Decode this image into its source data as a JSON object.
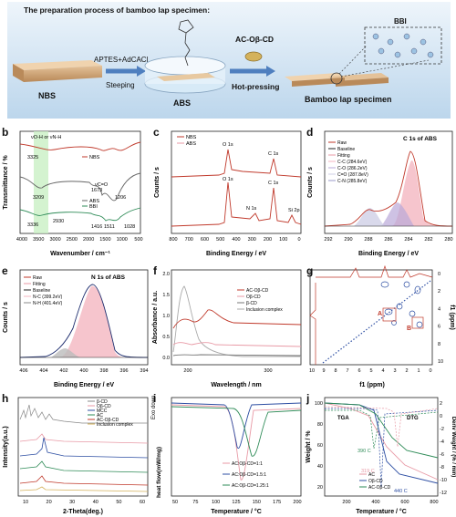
{
  "a": {
    "label": "a",
    "title": "The preparation process of bamboo lap specimen:",
    "step1": "APTES+AdCACl",
    "step1b": "Steeping",
    "step2": "AC-Oβ-CD",
    "step2b": "Hot-pressing",
    "nbs": "NBS",
    "abs": "ABS",
    "bbi": "BBI",
    "result": "Bamboo lap specimen"
  },
  "b": {
    "label": "b",
    "xlabel": "Wavenumber / cm⁻¹",
    "ylabel": "Transmittance / %",
    "xticks": [
      "4000",
      "3500",
      "3000",
      "2500",
      "2000",
      "1500",
      "1000",
      "500"
    ],
    "legend": [
      "NBS",
      "ABS",
      "BBI"
    ],
    "ann": {
      "top": "νO-H or νN-H",
      "a3325": "3325",
      "a3209": "3209",
      "a3336": "3336",
      "a2930": "2930",
      "a1673": "1673",
      "aC=O": "νC=O",
      "a1206": "1206",
      "a1416": "1416",
      "a1511": "1511",
      "a1028": "1028"
    }
  },
  "c": {
    "label": "c",
    "xlabel": "Binding Energy / eV",
    "ylabel": "Counts / s",
    "xticks": [
      "800",
      "700",
      "600",
      "500",
      "400",
      "300",
      "200",
      "100",
      "0"
    ],
    "legend": [
      "NBS",
      "ABS"
    ],
    "ann": {
      "o1": "O 1s",
      "c1": "C 1s",
      "o1b": "O 1s",
      "c1b": "C 1s",
      "n1": "N 1s",
      "si": "Si 2p"
    }
  },
  "d": {
    "label": "d",
    "title": "C 1s of ABS",
    "xlabel": "Binding Energy / eV",
    "ylabel": "Counts / s",
    "xticks": [
      "292",
      "290",
      "288",
      "286",
      "284",
      "282",
      "280"
    ],
    "legend": [
      "Raw",
      "Baseline",
      "Fitting",
      "C-C (284.6eV)",
      "C-O (286.2eV)",
      "C=O (287.8eV)",
      "C-N (285.8eV)"
    ]
  },
  "e": {
    "label": "e",
    "title": "N 1s of ABS",
    "xlabel": "Binding Energy / eV",
    "ylabel": "Counts / s",
    "xticks": [
      "406",
      "404",
      "402",
      "400",
      "398",
      "396",
      "394"
    ],
    "legend": [
      "Raw",
      "Fitting",
      "Baseline",
      "N-C (399.2eV)",
      "N-H (401.4eV)"
    ]
  },
  "f": {
    "label": "f",
    "xlabel": "Wavelength / nm",
    "ylabel": "Absorbance / a.u.",
    "xticks": [
      "200",
      "300"
    ],
    "yticks": [
      "0.0",
      "0.5",
      "1.0",
      "1.5",
      "2.0"
    ],
    "legend": [
      "AC-Oβ-CD",
      "Oβ-CD",
      "β-CD",
      "Inclusion complex"
    ]
  },
  "g": {
    "label": "g",
    "xlabel": "f1 (ppm)",
    "ylabel": "f1 (ppm)",
    "xticks": [
      "10",
      "9",
      "8",
      "7",
      "6",
      "5",
      "4",
      "3",
      "2",
      "1",
      "0"
    ],
    "yticks": [
      "0",
      "2",
      "4",
      "6",
      "8",
      "10"
    ],
    "markA": "A",
    "markB": "B"
  },
  "h": {
    "label": "h",
    "xlabel": "2-Theta(deg.)",
    "ylabel": "Intensity(a.u.)",
    "xticks": [
      "10",
      "20",
      "30",
      "40",
      "50",
      "60"
    ],
    "legend": [
      "β-CD",
      "Oβ-CD",
      "MCC",
      "AC",
      "AC-Oβ-CD",
      "Inclusion complex"
    ]
  },
  "i": {
    "label": "i",
    "xlabel": "Temperature / °C",
    "ylabel": "heat flow(mW/mg)",
    "exo": "Exo down",
    "xticks": [
      "50",
      "75",
      "100",
      "125",
      "150",
      "175",
      "200"
    ],
    "legend": [
      "AC:Oβ-CD=1:1",
      "AC:Oβ-CD=1.5:1",
      "AC:Oβ-CD=1.25:1"
    ]
  },
  "j": {
    "label": "j",
    "xlabel": "Temperature / °C",
    "ylabel": "Weight / %",
    "y2label": "Deriv Weight / (% / min)",
    "xticks": [
      "200",
      "400",
      "600",
      "800"
    ],
    "yticks": [
      "20",
      "40",
      "60",
      "80",
      "100"
    ],
    "y2ticks": [
      "2",
      "0",
      "-2",
      "-4",
      "-6",
      "-8",
      "-10",
      "-12"
    ],
    "tga": "TGA",
    "dtg": "DTG",
    "t1": "390 C",
    "t2": "319 C",
    "t3": "440 C",
    "legend": [
      "AC",
      "Oβ-CD",
      "AC-Oβ-CD"
    ]
  },
  "colors": {
    "red": "#c0392b",
    "pink": "#e89aa6",
    "blue": "#2e4fa3",
    "green": "#2e8b57",
    "gray": "#888888",
    "black": "#222222"
  }
}
